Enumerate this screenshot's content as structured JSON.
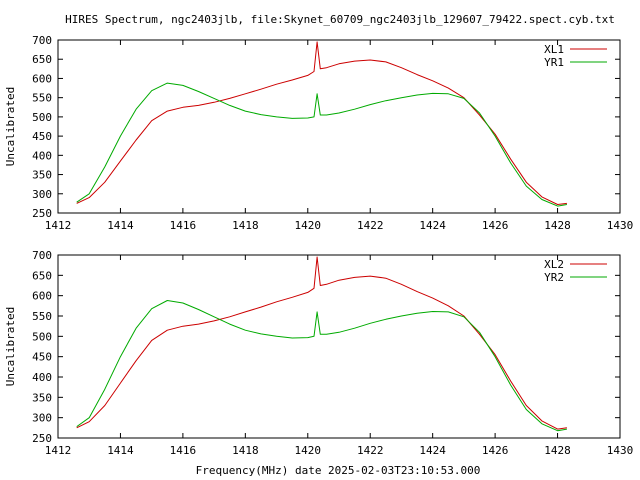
{
  "title": "HIRES Spectrum, ngc2403jlb, file:Skynet_60709_ngc2403jlb_129607_79422.spect.cyb.txt",
  "xlabel": "Frequency(MHz) date 2025-02-03T23:10:53.000",
  "chart_data": [
    {
      "type": "line",
      "title": "HIRES Spectrum, ngc2403jlb, file:Skynet_60709_ngc2403jlb_129607_79422.spect.cyb.txt",
      "xlabel": "",
      "ylabel": "Uncalibrated",
      "xlim": [
        1412,
        1430
      ],
      "ylim": [
        250,
        700
      ],
      "xticks": [
        1412,
        1414,
        1416,
        1418,
        1420,
        1422,
        1424,
        1426,
        1428,
        1430
      ],
      "yticks": [
        250,
        300,
        350,
        400,
        450,
        500,
        550,
        600,
        650,
        700
      ],
      "grid": false,
      "legend_position": "top-right",
      "series": [
        {
          "name": "XL1",
          "color": "#cc0000",
          "points": [
            [
              1412.6,
              275
            ],
            [
              1413.0,
              290
            ],
            [
              1413.5,
              330
            ],
            [
              1414.0,
              385
            ],
            [
              1414.5,
              440
            ],
            [
              1415.0,
              490
            ],
            [
              1415.5,
              515
            ],
            [
              1416.0,
              525
            ],
            [
              1416.5,
              530
            ],
            [
              1417.0,
              538
            ],
            [
              1417.5,
              548
            ],
            [
              1418.0,
              560
            ],
            [
              1418.5,
              572
            ],
            [
              1419.0,
              585
            ],
            [
              1419.5,
              596
            ],
            [
              1420.0,
              608
            ],
            [
              1420.2,
              618
            ],
            [
              1420.3,
              695
            ],
            [
              1420.4,
              625
            ],
            [
              1420.6,
              628
            ],
            [
              1421.0,
              638
            ],
            [
              1421.5,
              645
            ],
            [
              1422.0,
              648
            ],
            [
              1422.5,
              643
            ],
            [
              1423.0,
              628
            ],
            [
              1423.5,
              610
            ],
            [
              1424.0,
              594
            ],
            [
              1424.5,
              575
            ],
            [
              1425.0,
              550
            ],
            [
              1425.5,
              505
            ],
            [
              1426.0,
              455
            ],
            [
              1426.5,
              390
            ],
            [
              1427.0,
              330
            ],
            [
              1427.5,
              292
            ],
            [
              1428.0,
              272
            ],
            [
              1428.3,
              275
            ]
          ]
        },
        {
          "name": "YR1",
          "color": "#00aa00",
          "points": [
            [
              1412.6,
              278
            ],
            [
              1413.0,
              300
            ],
            [
              1413.5,
              370
            ],
            [
              1414.0,
              450
            ],
            [
              1414.5,
              520
            ],
            [
              1415.0,
              568
            ],
            [
              1415.5,
              588
            ],
            [
              1416.0,
              582
            ],
            [
              1416.5,
              566
            ],
            [
              1417.0,
              548
            ],
            [
              1417.5,
              530
            ],
            [
              1418.0,
              515
            ],
            [
              1418.5,
              506
            ],
            [
              1419.0,
              500
            ],
            [
              1419.5,
              496
            ],
            [
              1420.0,
              497
            ],
            [
              1420.2,
              500
            ],
            [
              1420.3,
              560
            ],
            [
              1420.4,
              505
            ],
            [
              1420.6,
              505
            ],
            [
              1421.0,
              510
            ],
            [
              1421.5,
              520
            ],
            [
              1422.0,
              532
            ],
            [
              1422.5,
              542
            ],
            [
              1423.0,
              550
            ],
            [
              1423.5,
              557
            ],
            [
              1424.0,
              561
            ],
            [
              1424.5,
              560
            ],
            [
              1425.0,
              548
            ],
            [
              1425.5,
              510
            ],
            [
              1426.0,
              450
            ],
            [
              1426.5,
              380
            ],
            [
              1427.0,
              320
            ],
            [
              1427.5,
              285
            ],
            [
              1428.0,
              268
            ],
            [
              1428.3,
              272
            ]
          ]
        }
      ]
    },
    {
      "type": "line",
      "title": "",
      "xlabel": "Frequency(MHz) date 2025-02-03T23:10:53.000",
      "ylabel": "Uncalibrated",
      "xlim": [
        1412,
        1430
      ],
      "ylim": [
        250,
        700
      ],
      "xticks": [
        1412,
        1414,
        1416,
        1418,
        1420,
        1422,
        1424,
        1426,
        1428,
        1430
      ],
      "yticks": [
        250,
        300,
        350,
        400,
        450,
        500,
        550,
        600,
        650,
        700
      ],
      "grid": false,
      "legend_position": "top-right",
      "series": [
        {
          "name": "XL2",
          "color": "#cc0000",
          "points": [
            [
              1412.6,
              275
            ],
            [
              1413.0,
              290
            ],
            [
              1413.5,
              330
            ],
            [
              1414.0,
              385
            ],
            [
              1414.5,
              440
            ],
            [
              1415.0,
              490
            ],
            [
              1415.5,
              515
            ],
            [
              1416.0,
              525
            ],
            [
              1416.5,
              530
            ],
            [
              1417.0,
              538
            ],
            [
              1417.5,
              548
            ],
            [
              1418.0,
              560
            ],
            [
              1418.5,
              572
            ],
            [
              1419.0,
              585
            ],
            [
              1419.5,
              596
            ],
            [
              1420.0,
              608
            ],
            [
              1420.2,
              618
            ],
            [
              1420.3,
              695
            ],
            [
              1420.4,
              625
            ],
            [
              1420.6,
              628
            ],
            [
              1421.0,
              638
            ],
            [
              1421.5,
              645
            ],
            [
              1422.0,
              648
            ],
            [
              1422.5,
              643
            ],
            [
              1423.0,
              628
            ],
            [
              1423.5,
              610
            ],
            [
              1424.0,
              594
            ],
            [
              1424.5,
              575
            ],
            [
              1425.0,
              550
            ],
            [
              1425.5,
              505
            ],
            [
              1426.0,
              455
            ],
            [
              1426.5,
              390
            ],
            [
              1427.0,
              330
            ],
            [
              1427.5,
              292
            ],
            [
              1428.0,
              272
            ],
            [
              1428.3,
              275
            ]
          ]
        },
        {
          "name": "YR2",
          "color": "#00aa00",
          "points": [
            [
              1412.6,
              278
            ],
            [
              1413.0,
              300
            ],
            [
              1413.5,
              370
            ],
            [
              1414.0,
              450
            ],
            [
              1414.5,
              520
            ],
            [
              1415.0,
              568
            ],
            [
              1415.5,
              588
            ],
            [
              1416.0,
              582
            ],
            [
              1416.5,
              566
            ],
            [
              1417.0,
              548
            ],
            [
              1417.5,
              530
            ],
            [
              1418.0,
              515
            ],
            [
              1418.5,
              506
            ],
            [
              1419.0,
              500
            ],
            [
              1419.5,
              496
            ],
            [
              1420.0,
              497
            ],
            [
              1420.2,
              500
            ],
            [
              1420.3,
              560
            ],
            [
              1420.4,
              505
            ],
            [
              1420.6,
              505
            ],
            [
              1421.0,
              510
            ],
            [
              1421.5,
              520
            ],
            [
              1422.0,
              532
            ],
            [
              1422.5,
              542
            ],
            [
              1423.0,
              550
            ],
            [
              1423.5,
              557
            ],
            [
              1424.0,
              561
            ],
            [
              1424.5,
              560
            ],
            [
              1425.0,
              548
            ],
            [
              1425.5,
              510
            ],
            [
              1426.0,
              450
            ],
            [
              1426.5,
              380
            ],
            [
              1427.0,
              320
            ],
            [
              1427.5,
              285
            ],
            [
              1428.0,
              268
            ],
            [
              1428.3,
              272
            ]
          ]
        }
      ]
    }
  ]
}
